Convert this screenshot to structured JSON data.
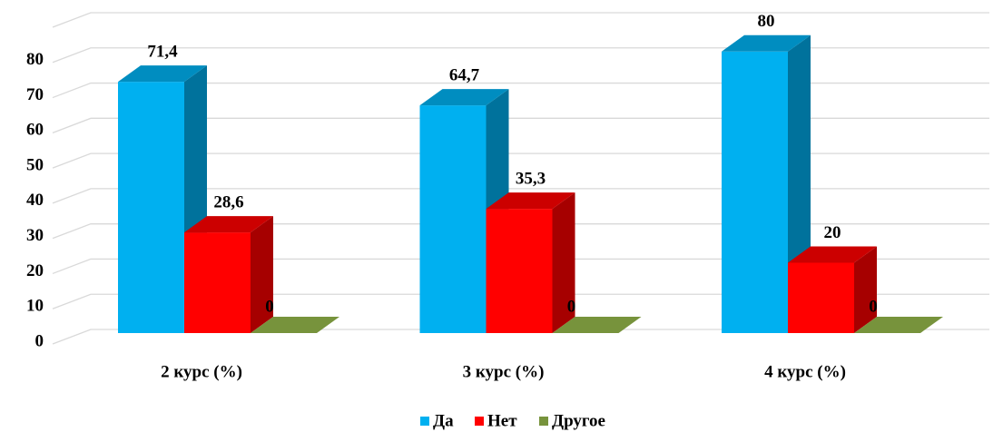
{
  "chart_data": {
    "type": "bar3d",
    "categories": [
      "2 курс (%)",
      "3 курс (%)",
      "4 курс (%)"
    ],
    "series": [
      {
        "name": "Да",
        "color": "#00b0f0",
        "values": [
          71.4,
          64.7,
          80
        ],
        "value_labels": [
          "71,4",
          "64,7",
          "80"
        ]
      },
      {
        "name": "Нет",
        "color": "#ff0000",
        "values": [
          28.6,
          35.3,
          20
        ],
        "value_labels": [
          "28,6",
          "35,3",
          "20"
        ]
      },
      {
        "name": "Другое",
        "color": "#77933c",
        "values": [
          0,
          0,
          0
        ],
        "value_labels": [
          "0",
          "0",
          "0"
        ]
      }
    ],
    "ylim": [
      0,
      90
    ],
    "yticks": [
      0,
      10,
      20,
      30,
      40,
      50,
      60,
      70,
      80
    ],
    "grid": true,
    "legend": "bottom"
  }
}
